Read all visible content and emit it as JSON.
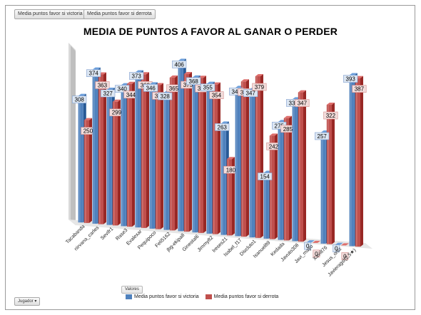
{
  "toolbar": {
    "field1": "Media puntos favor si victoria",
    "field2": "Media puntos favor si derrota"
  },
  "row_field": "Jugador",
  "values_field": "Valores",
  "colors": {
    "series1": "#4f81bd",
    "series2": "#c0504d",
    "label_fill1": "#dce6f2",
    "label_fill2": "#f2dcdb"
  },
  "chart_data": {
    "type": "bar",
    "title": "MEDIA DE PUNTOS A FAVOR AL GANAR O PERDER",
    "categories": [
      "Tacabanda",
      "nirvana_carles",
      "Sevifr1",
      "Rase3",
      "Evalexar",
      "Pequipoco",
      "Feli5162",
      "jbg-ekipa8",
      "Ginestal6",
      "Jimmy82",
      "Ireses21",
      "Isabel_f17",
      "Discluto1",
      "Isanuel89",
      "Kedada",
      "Javuto308",
      "Javi_mayo",
      "Xavi876",
      "Jesus_ortiz",
      "Javieragsl(2,5★)"
    ],
    "series": [
      {
        "name": "Media puntos favor si victoria",
        "values": [
          308,
          374,
          327,
          340,
          373,
          346,
          328,
          406,
          368,
          355,
          263,
          349,
          347,
          154,
          275,
          330,
          0,
          257,
          0,
          393
        ]
      },
      {
        "name": "Media puntos favor si derrota",
        "values": [
          250,
          363,
          299,
          344,
          369,
          345,
          365,
          375,
          368,
          354,
          180,
          365,
          379,
          242,
          285,
          347,
          0,
          322,
          0,
          387
        ]
      }
    ],
    "ylim": [
      0,
      420
    ],
    "legend_position": "bottom",
    "grid": false
  }
}
